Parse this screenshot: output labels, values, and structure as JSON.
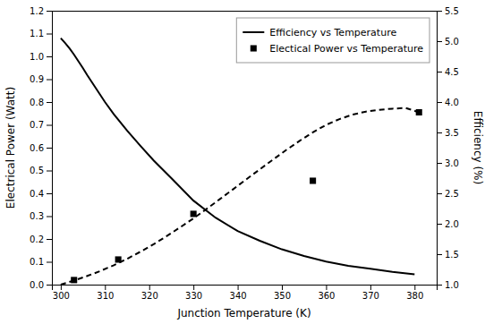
{
  "chart_data": {
    "type": "line",
    "xlabel": "Junction Temperature (K)",
    "ylabel": "Electrical Power (Watt)",
    "y2label": "Efficiency (%)",
    "xlim": [
      298,
      385
    ],
    "ylim": [
      0,
      1.2
    ],
    "y2lim": [
      1.0,
      5.5
    ],
    "xticks": [
      300,
      310,
      320,
      330,
      340,
      350,
      360,
      370,
      380
    ],
    "yticks": [
      {
        "value": 0.0,
        "label": "0.0"
      },
      0.1,
      0.2,
      0.3,
      0.4,
      0.5,
      0.6,
      0.7,
      0.8,
      0.9,
      {
        "value": 1.0,
        "label": "1.0"
      },
      1.1,
      1.2
    ],
    "y2ticks": [
      {
        "value": 1.0,
        "label": "1.0"
      },
      1.5,
      {
        "value": 2.0,
        "label": "2.0"
      },
      2.5,
      {
        "value": 3.0,
        "label": "3.0"
      },
      3.5,
      {
        "value": 4.0,
        "label": "4.0"
      },
      4.5,
      {
        "value": 5.0,
        "label": "5.0"
      },
      5.5
    ],
    "grid": false,
    "legend": "upper right",
    "series": [
      {
        "name": "Efficiency vs Temperature",
        "type": "line",
        "axis": "y2",
        "color": "#000000",
        "line_style": "solid",
        "x": [
          300,
          301,
          302,
          303,
          304,
          305,
          306,
          307,
          308,
          310,
          312,
          315,
          318,
          321,
          325,
          330,
          335,
          340,
          345,
          350,
          355,
          360,
          365,
          370,
          375,
          380
        ],
        "values": [
          5.05,
          4.97,
          4.88,
          4.78,
          4.67,
          4.56,
          4.44,
          4.33,
          4.22,
          4.0,
          3.8,
          3.53,
          3.28,
          3.04,
          2.75,
          2.38,
          2.1,
          1.88,
          1.72,
          1.58,
          1.47,
          1.38,
          1.31,
          1.26,
          1.21,
          1.17
        ]
      },
      {
        "type": "line",
        "color": "#000000",
        "line_style": "dashed",
        "x": [
          300,
          303,
          306,
          309,
          312,
          315,
          318,
          321,
          324,
          327,
          330,
          333,
          336,
          339,
          342,
          345,
          348,
          351,
          354,
          357,
          360,
          363,
          366,
          369,
          372,
          375,
          378,
          381
        ],
        "values": [
          0.0,
          0.018,
          0.038,
          0.06,
          0.085,
          0.113,
          0.144,
          0.177,
          0.213,
          0.251,
          0.29,
          0.332,
          0.375,
          0.418,
          0.462,
          0.505,
          0.548,
          0.59,
          0.63,
          0.667,
          0.7,
          0.725,
          0.745,
          0.758,
          0.766,
          0.771,
          0.774,
          0.755
        ]
      },
      {
        "name": "Electical Power vs Temperature",
        "type": "scatter",
        "color": "#000000",
        "marker": "square",
        "x": [
          303,
          313,
          330,
          357,
          381
        ],
        "values": [
          0.02,
          0.11,
          0.31,
          0.455,
          0.755
        ]
      }
    ]
  }
}
